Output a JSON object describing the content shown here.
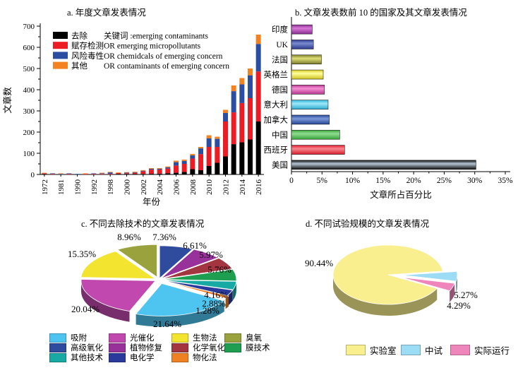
{
  "canvas": {
    "background": "#ffffff"
  },
  "chart_data": [
    {
      "id": "a",
      "type": "stacked_bar",
      "title": "a. 年度文章发表情况",
      "xlabel": "年份",
      "ylabel": "文章数",
      "ylim": [
        0,
        700
      ],
      "ytick_major": 100,
      "ytick_minor": 50,
      "categories": [
        "1972",
        "1976",
        "1981",
        "1986",
        "1990",
        "1991",
        "1992",
        "1995",
        "1998",
        "1999",
        "2000",
        "2001",
        "2002",
        "2003",
        "2004",
        "2005",
        "2006",
        "2007",
        "2008",
        "2009",
        "2010",
        "2011",
        "2012",
        "2013",
        "2014",
        "2015",
        "2016"
      ],
      "label_every": 2,
      "series": [
        {
          "name": "去除",
          "color": "#000000",
          "values": [
            1,
            0,
            0,
            0,
            0,
            0,
            0,
            0,
            0,
            1,
            1,
            1,
            2,
            3,
            4,
            6,
            8,
            12,
            25,
            20,
            40,
            55,
            85,
            143,
            152,
            165,
            250
          ]
        },
        {
          "name": "赋存检测",
          "color": "#ed1c24",
          "values": [
            1,
            1,
            0,
            1,
            0,
            1,
            1,
            1,
            2,
            4,
            3,
            5,
            12,
            20,
            19,
            22,
            34,
            38,
            50,
            76,
            90,
            75,
            165,
            150,
            185,
            195,
            236
          ]
        },
        {
          "name": "风险毒性",
          "color": "#2b4ea2",
          "values": [
            0,
            1,
            1,
            1,
            2,
            0,
            1,
            1,
            7,
            0,
            1,
            1,
            3,
            4,
            4,
            6,
            16,
            14,
            15,
            27,
            40,
            38,
            40,
            100,
            88,
            108,
            130
          ]
        },
        {
          "name": "其他",
          "color": "#f58220",
          "values": [
            2,
            0,
            1,
            0,
            0,
            2,
            0,
            2,
            1,
            2,
            1,
            1,
            3,
            3,
            3,
            4,
            7,
            6,
            7,
            7,
            15,
            10,
            15,
            27,
            30,
            32,
            44
          ]
        }
      ],
      "keywords": [
        "关键词 :emerging contaminants",
        "OR emerging micropollutants",
        "OR chemidcals of emerging concern",
        "OR contaminants of emerging concern"
      ],
      "legend_position": "inside top-left"
    },
    {
      "id": "b",
      "type": "bar_horizontal",
      "title": "b. 文章发表数前 10 的国家及其文章发表情况",
      "xlabel": "文章所占百分比",
      "xlim": [
        0,
        35
      ],
      "xtick_major": 5,
      "xtick_minor": 2.5,
      "xtick_labels": [
        "0",
        "5%",
        "10%",
        "15%",
        "20%",
        "25%",
        "30%",
        "35%"
      ],
      "categories": [
        "印度",
        "UK",
        "法国",
        "英格兰",
        "德国",
        "意大利",
        "加拿大",
        "中国",
        "西班牙",
        "美国"
      ],
      "values": [
        3.4,
        3.6,
        4.9,
        5.2,
        5.4,
        6.0,
        6.2,
        7.9,
        8.7,
        30.2
      ],
      "bar_colors": [
        {
          "dark": "#8e2f96",
          "light": "#d878d8"
        },
        {
          "dark": "#2c3a90",
          "light": "#7c8cd0"
        },
        {
          "dark": "#7e7e2e",
          "light": "#e0e078"
        },
        {
          "dark": "#d8cc20",
          "light": "#ffff9e"
        },
        {
          "dark": "#c03896",
          "light": "#f490d4"
        },
        {
          "dark": "#2ab4dc",
          "light": "#a0e8fa"
        },
        {
          "dark": "#27479e",
          "light": "#7c9ad8"
        },
        {
          "dark": "#3aa83a",
          "light": "#90dc90"
        },
        {
          "dark": "#e01c2c",
          "light": "#f88890"
        },
        {
          "dark": "#0a0a0a",
          "light": "#b4c4d4"
        }
      ]
    },
    {
      "id": "c",
      "type": "pie",
      "title": "c. 不同去除技术的文章发表情况",
      "start_angle_deg": 90,
      "direction": "clockwise",
      "slices": [
        {
          "name": "高级氧化",
          "value": 7.36,
          "color": "#2e4b9e"
        },
        {
          "name": "植物修复",
          "value": 6.61,
          "color": "#99319b"
        },
        {
          "name": "化学氧化",
          "value": 5.97,
          "color": "#a33540"
        },
        {
          "name": "膜技术",
          "value": 5.76,
          "color": "#1d9e50"
        },
        {
          "name": "其他技术",
          "value": 4.16,
          "color": "#17a9a3"
        },
        {
          "name": "电化学",
          "value": 2.88,
          "color": "#2a3a9c"
        },
        {
          "name": "物化法",
          "value": 1.28,
          "color": "#f08122"
        },
        {
          "name": "吸附",
          "value": 21.64,
          "color": "#4ec4f0"
        },
        {
          "name": "光催化",
          "value": 20.04,
          "color": "#c148ae"
        },
        {
          "name": "生物法",
          "value": 15.35,
          "color": "#f3e52f"
        },
        {
          "name": "臭氧",
          "value": 8.96,
          "color": "#9aa23e"
        }
      ],
      "legend_rows": [
        [
          "吸附",
          "光催化",
          "生物法",
          "臭氧"
        ],
        [
          "高级氧化",
          "植物修复",
          "化学氧化",
          "膜技术"
        ],
        [
          "其他技术",
          "电化学",
          "物化法"
        ]
      ]
    },
    {
      "id": "d",
      "type": "pie",
      "title": "d. 不同试验规模的文章发表情况",
      "start_angle_deg": 7,
      "direction": "clockwise",
      "slices": [
        {
          "name": "实验室",
          "value": 90.44,
          "color": "#f9ef8e"
        },
        {
          "name": "中试",
          "value": 5.27,
          "color": "#9cdcf5"
        },
        {
          "name": "实际运行",
          "value": 4.29,
          "color": "#ee86bc"
        }
      ],
      "legend_rows": [
        [
          "实验室",
          "中试",
          "实际运行"
        ]
      ]
    }
  ]
}
